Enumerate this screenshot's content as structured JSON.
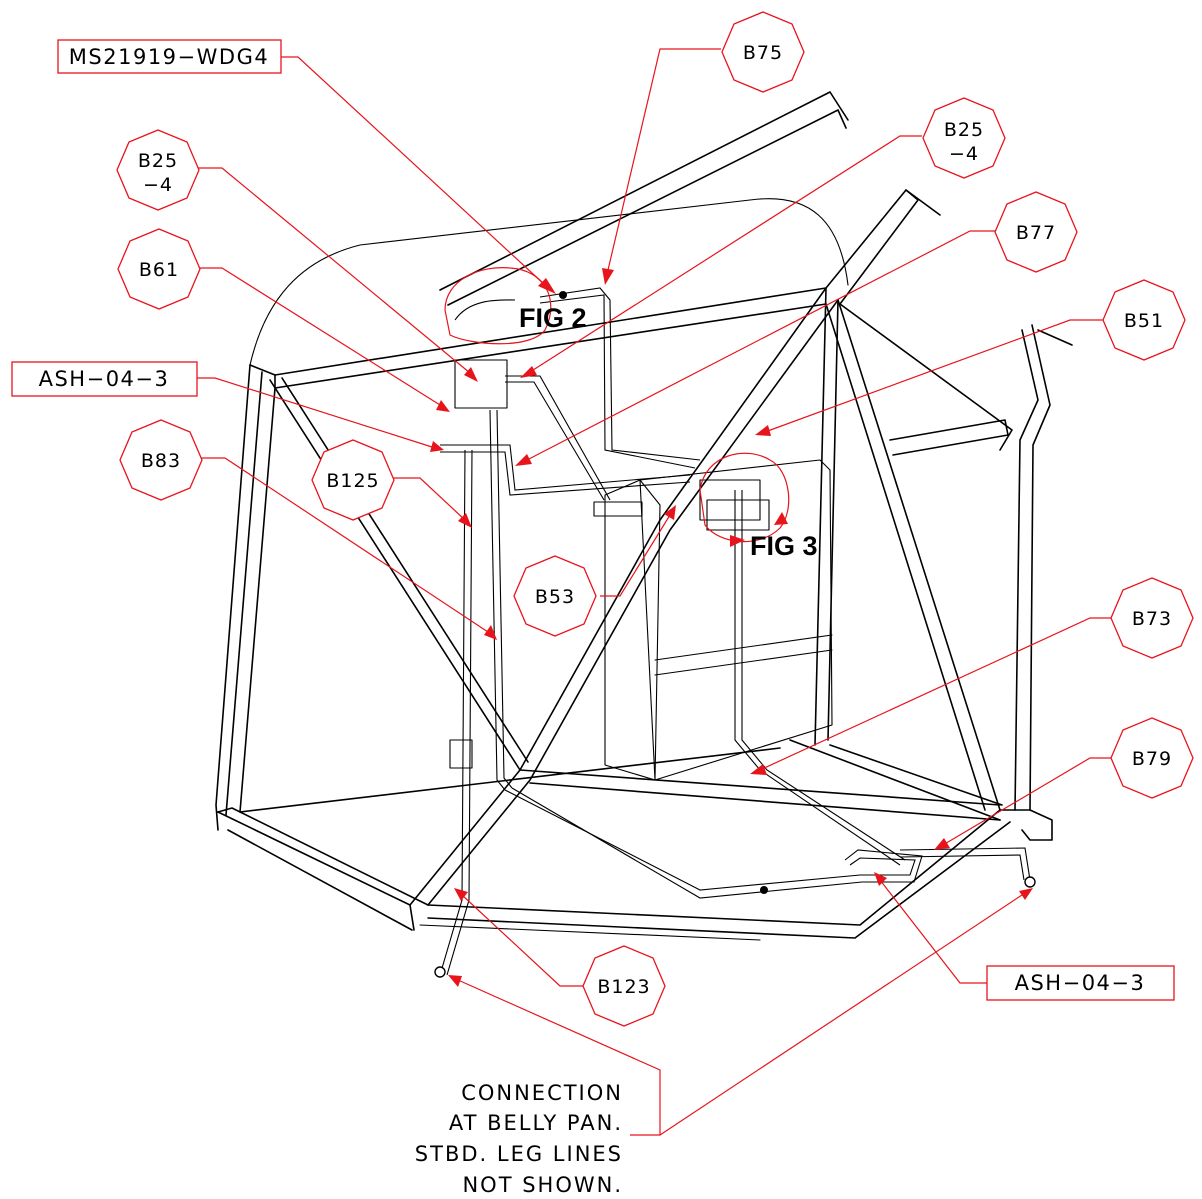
{
  "callouts": {
    "b75": "B75",
    "b25_top": [
      "B25",
      "−4"
    ],
    "b25_left": [
      "B25",
      "−4"
    ],
    "b77": "B77",
    "b61": "B61",
    "b51": "B51",
    "b83": "B83",
    "b125": "B125",
    "b53": "B53",
    "b73": "B73",
    "b79": "B79",
    "b123": "B123"
  },
  "boxes": {
    "ms21919": "MS21919−WDG4",
    "ash_left": "ASH−04−3",
    "ash_right": "ASH−04−3"
  },
  "figures": {
    "fig2": "FIG 2",
    "fig3": "FIG 3"
  },
  "note": {
    "lines": [
      "CONNECTION",
      "AT BELLY PAN.",
      "STBD. LEG LINES",
      "NOT SHOWN."
    ]
  },
  "colors": {
    "callout": "#e8141c",
    "linework": "#000000"
  }
}
